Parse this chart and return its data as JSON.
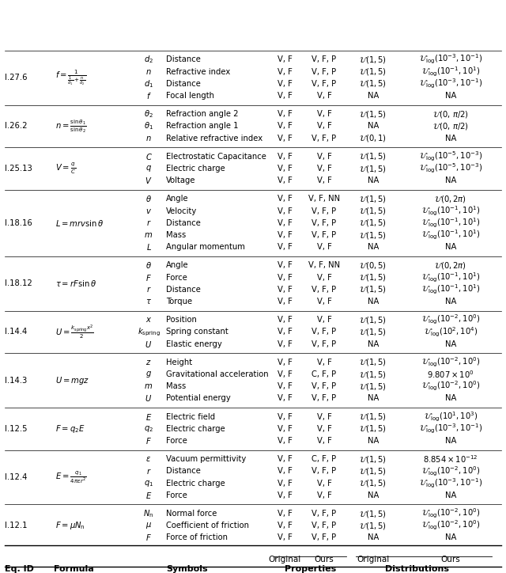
{
  "rows": [
    {
      "eq_id": "I.12.1",
      "formula": "$F = \\mu N_{\\rm n}$",
      "symbols": [
        "$F$",
        "$\\mu$",
        "$N_{\\rm n}$"
      ],
      "descriptions": [
        "Force of friction",
        "Coefficient of friction",
        "Normal force"
      ],
      "prop_orig": [
        "V, F",
        "V, F",
        "V, F"
      ],
      "prop_ours": [
        "V, F, P",
        "V, F, P",
        "V, F, P"
      ],
      "dist_orig": [
        "NA",
        "$\\mathcal{U}(1, 5)$",
        "$\\mathcal{U}(1, 5)$"
      ],
      "dist_ours": [
        "NA",
        "$\\mathcal{U}_{\\rm log}(10^{-2}, 10^{0})$",
        "$\\mathcal{U}_{\\rm log}(10^{-2}, 10^{0})$"
      ]
    },
    {
      "eq_id": "I.12.4",
      "formula": "$E = \\frac{q_{1}}{4\\pi\\epsilon r^{2}}$",
      "symbols": [
        "$E$",
        "$q_{1}$",
        "$r$",
        "$\\epsilon$"
      ],
      "descriptions": [
        "Force",
        "Electric charge",
        "Distance",
        "Vacuum permittivity"
      ],
      "prop_orig": [
        "V, F",
        "V, F",
        "V, F",
        "V, F"
      ],
      "prop_ours": [
        "V, F",
        "V, F",
        "V, F, P",
        "C, F, P"
      ],
      "dist_orig": [
        "NA",
        "$\\mathcal{U}(1, 5)$",
        "$\\mathcal{U}(1, 5)$",
        "$\\mathcal{U}(1, 5)$"
      ],
      "dist_ours": [
        "NA",
        "$\\mathcal{U}_{\\rm log}(10^{-3}, 10^{-1})$",
        "$\\mathcal{U}_{\\rm log}(10^{-2}, 10^{0})$",
        "$8.854 \\times 10^{-12}$"
      ]
    },
    {
      "eq_id": "I.12.5",
      "formula": "$F = q_{2} E$",
      "symbols": [
        "$F$",
        "$q_{2}$",
        "$E$"
      ],
      "descriptions": [
        "Force",
        "Electric charge",
        "Electric field"
      ],
      "prop_orig": [
        "V, F",
        "V, F",
        "V, F"
      ],
      "prop_ours": [
        "V, F",
        "V, F",
        "V, F"
      ],
      "dist_orig": [
        "NA",
        "$\\mathcal{U}(1, 5)$",
        "$\\mathcal{U}(1, 5)$"
      ],
      "dist_ours": [
        "NA",
        "$\\mathcal{U}_{\\rm log}(10^{-3}, 10^{-1})$",
        "$\\mathcal{U}_{\\rm log}(10^{1}, 10^{3})$"
      ]
    },
    {
      "eq_id": "I.14.3",
      "formula": "$U = mgz$",
      "symbols": [
        "$U$",
        "$m$",
        "$g$",
        "$z$"
      ],
      "descriptions": [
        "Potential energy",
        "Mass",
        "Gravitational acceleration",
        "Height"
      ],
      "prop_orig": [
        "V, F",
        "V, F",
        "V, F",
        "V, F"
      ],
      "prop_ours": [
        "V, F, P",
        "V, F, P",
        "C, F, P",
        "V, F"
      ],
      "dist_orig": [
        "NA",
        "$\\mathcal{U}(1, 5)$",
        "$\\mathcal{U}(1, 5)$",
        "$\\mathcal{U}(1, 5)$"
      ],
      "dist_ours": [
        "NA",
        "$\\mathcal{U}_{\\rm log}(10^{-2}, 10^{0})$",
        "$9.807 \\times 10^{0}$",
        "$\\mathcal{U}_{\\rm log}(10^{-2}, 10^{0})$"
      ]
    },
    {
      "eq_id": "I.14.4",
      "formula": "$U = \\frac{k_{\\rm spring} x^{2}}{2}$",
      "symbols": [
        "$U$",
        "$k_{\\rm spring}$",
        "$x$"
      ],
      "descriptions": [
        "Elastic energy",
        "Spring constant",
        "Position"
      ],
      "prop_orig": [
        "V, F",
        "V, F",
        "V, F"
      ],
      "prop_ours": [
        "V, F, P",
        "V, F, P",
        "V, F"
      ],
      "dist_orig": [
        "NA",
        "$\\mathcal{U}(1, 5)$",
        "$\\mathcal{U}(1, 5)$"
      ],
      "dist_ours": [
        "NA",
        "$\\mathcal{U}_{\\rm log}(10^{2}, 10^{4})$",
        "$\\mathcal{U}_{\\rm log}(10^{-2}, 10^{0})$"
      ]
    },
    {
      "eq_id": "I.18.12",
      "formula": "$\\tau = rF\\sin\\theta$",
      "symbols": [
        "$\\tau$",
        "$r$",
        "$F$",
        "$\\theta$"
      ],
      "descriptions": [
        "Torque",
        "Distance",
        "Force",
        "Angle"
      ],
      "prop_orig": [
        "V, F",
        "V, F",
        "V, F",
        "V, F"
      ],
      "prop_ours": [
        "V, F",
        "V, F, P",
        "V, F",
        "V, F, NN"
      ],
      "dist_orig": [
        "NA",
        "$\\mathcal{U}(1, 5)$",
        "$\\mathcal{U}(1, 5)$",
        "$\\mathcal{U}(0, 5)$"
      ],
      "dist_ours": [
        "NA",
        "$\\mathcal{U}_{\\rm log}(10^{-1}, 10^{1})$",
        "$\\mathcal{U}_{\\rm log}(10^{-1}, 10^{1})$",
        "$\\mathcal{U}(0, 2\\pi)$"
      ]
    },
    {
      "eq_id": "I.18.16",
      "formula": "$L = mrv\\sin\\theta$",
      "symbols": [
        "$L$",
        "$m$",
        "$r$",
        "$v$",
        "$\\theta$"
      ],
      "descriptions": [
        "Angular momentum",
        "Mass",
        "Distance",
        "Velocity",
        "Angle"
      ],
      "prop_orig": [
        "V, F",
        "V, F",
        "V, F",
        "V, F",
        "V, F"
      ],
      "prop_ours": [
        "V, F",
        "V, F, P",
        "V, F, P",
        "V, F, P",
        "V, F, NN"
      ],
      "dist_orig": [
        "NA",
        "$\\mathcal{U}(1, 5)$",
        "$\\mathcal{U}(1, 5)$",
        "$\\mathcal{U}(1, 5)$",
        "$\\mathcal{U}(1, 5)$"
      ],
      "dist_ours": [
        "NA",
        "$\\mathcal{U}_{\\rm log}(10^{-1}, 10^{1})$",
        "$\\mathcal{U}_{\\rm log}(10^{-1}, 10^{1})$",
        "$\\mathcal{U}_{\\rm log}(10^{-1}, 10^{1})$",
        "$\\mathcal{U}(0, 2\\pi)$"
      ]
    },
    {
      "eq_id": "I.25.13",
      "formula": "$V = \\frac{q}{C}$",
      "symbols": [
        "$V$",
        "$q$",
        "$C$"
      ],
      "descriptions": [
        "Voltage",
        "Electric charge",
        "Electrostatic Capacitance"
      ],
      "prop_orig": [
        "V, F",
        "V, F",
        "V, F"
      ],
      "prop_ours": [
        "V, F",
        "V, F",
        "V, F"
      ],
      "dist_orig": [
        "NA",
        "$\\mathcal{U}(1, 5)$",
        "$\\mathcal{U}(1, 5)$"
      ],
      "dist_ours": [
        "NA",
        "$\\mathcal{U}_{\\rm log}(10^{-5}, 10^{-3})$",
        "$\\mathcal{U}_{\\rm log}(10^{-5}, 10^{-3})$"
      ]
    },
    {
      "eq_id": "I.26.2",
      "formula": "$n = \\frac{\\sin\\theta_{1}}{\\sin\\theta_{2}}$",
      "symbols": [
        "$n$",
        "$\\theta_{1}$",
        "$\\theta_{2}$"
      ],
      "descriptions": [
        "Relative refractive index",
        "Refraction angle 1",
        "Refraction angle 2"
      ],
      "prop_orig": [
        "V, F",
        "V, F",
        "V, F"
      ],
      "prop_ours": [
        "V, F, P",
        "V, F",
        "V, F"
      ],
      "dist_orig": [
        "$\\mathcal{U}(0, 1)$",
        "NA",
        "$\\mathcal{U}(1, 5)$"
      ],
      "dist_ours": [
        "NA",
        "$\\mathcal{U}(0,\\, \\pi/2)$",
        "$\\mathcal{U}(0,\\, \\pi/2)$"
      ]
    },
    {
      "eq_id": "I.27.6",
      "formula": "$f = \\frac{1}{\\frac{1}{d_{1}} + \\frac{n}{d_{2}}}$",
      "symbols": [
        "$f$",
        "$d_{1}$",
        "$n$",
        "$d_{2}$"
      ],
      "descriptions": [
        "Focal length",
        "Distance",
        "Refractive index",
        "Distance"
      ],
      "prop_orig": [
        "V, F",
        "V, F",
        "V, F",
        "V, F"
      ],
      "prop_ours": [
        "V, F",
        "V, F, P",
        "V, F, P",
        "V, F, P"
      ],
      "dist_orig": [
        "NA",
        "$\\mathcal{U}(1, 5)$",
        "$\\mathcal{U}(1, 5)$",
        "$\\mathcal{U}(1, 5)$"
      ],
      "dist_ours": [
        "NA",
        "$\\mathcal{U}_{\\rm log}(10^{-3}, 10^{-1})$",
        "$\\mathcal{U}_{\\rm log}(10^{-1}, 10^{1})$",
        "$\\mathcal{U}_{\\rm log}(10^{-3}, 10^{-1})$"
      ]
    }
  ]
}
